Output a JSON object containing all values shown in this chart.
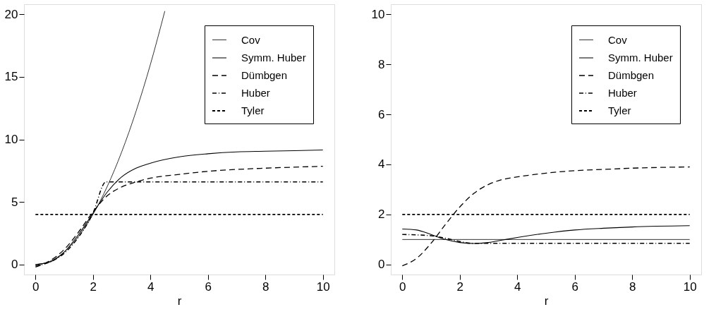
{
  "chart_data": [
    {
      "type": "line",
      "xlabel": "r",
      "xlim": [
        -0.4,
        10.4
      ],
      "ylim": [
        -0.8,
        20.8
      ],
      "xticks": [
        0,
        2,
        4,
        6,
        8,
        10
      ],
      "yticks": [
        0,
        5,
        10,
        15,
        20
      ],
      "grid": false,
      "legend": "top right",
      "marker": "none",
      "series": [
        {
          "name": "Cov",
          "color": "#000000",
          "line_style": "solid",
          "x": [
            0,
            0.5,
            1,
            1.5,
            2,
            2.5,
            3,
            3.5,
            4,
            4.5
          ],
          "values": [
            0,
            0.25,
            1,
            2.25,
            4,
            6.25,
            9,
            12.25,
            16,
            20.25
          ]
        },
        {
          "name": "Symm. Huber",
          "color": "#000000",
          "line_style": "solid",
          "x": [
            0,
            0.5,
            1,
            1.5,
            2,
            2.5,
            3,
            3.5,
            4,
            5,
            6,
            7,
            8,
            10
          ],
          "values": [
            0,
            0.2,
            1.0,
            2.4,
            4.1,
            5.8,
            7.0,
            7.7,
            8.1,
            8.6,
            8.85,
            9.0,
            9.05,
            9.15
          ]
        },
        {
          "name": "Dümbgen",
          "color": "#000000",
          "line_style": "dashed",
          "x": [
            0,
            0.5,
            1,
            1.5,
            2,
            2.5,
            3,
            3.5,
            4,
            5,
            6,
            7,
            8,
            10
          ],
          "values": [
            -0.2,
            0.3,
            1.2,
            2.6,
            4.2,
            5.5,
            6.2,
            6.6,
            6.9,
            7.2,
            7.45,
            7.6,
            7.7,
            7.85
          ]
        },
        {
          "name": "Huber",
          "color": "#000000",
          "line_style": "dashdot",
          "x": [
            0,
            0.5,
            1,
            1.5,
            2,
            2.45,
            10
          ],
          "values": [
            -0.1,
            0.2,
            0.9,
            2.2,
            4.1,
            6.6,
            6.6
          ]
        },
        {
          "name": "Tyler",
          "color": "#000000",
          "line_style": "dashed",
          "x": [
            0,
            10
          ],
          "values": [
            4,
            4
          ]
        }
      ]
    },
    {
      "type": "line",
      "xlabel": "r",
      "xlim": [
        -0.4,
        10.4
      ],
      "ylim": [
        -0.4,
        10.4
      ],
      "xticks": [
        0,
        2,
        4,
        6,
        8,
        10
      ],
      "yticks": [
        0,
        2,
        4,
        6,
        8,
        10
      ],
      "grid": false,
      "legend": "top right",
      "marker": "none",
      "series": [
        {
          "name": "Cov",
          "color": "#000000",
          "line_style": "solid",
          "x": [
            0,
            10
          ],
          "values": [
            1,
            1
          ]
        },
        {
          "name": "Symm. Huber",
          "color": "#000000",
          "line_style": "solid",
          "x": [
            0,
            0.5,
            1,
            1.5,
            2,
            2.5,
            3,
            3.5,
            4,
            5,
            6,
            7,
            8,
            10
          ],
          "values": [
            1.42,
            1.38,
            1.2,
            1.0,
            0.88,
            0.84,
            0.88,
            0.98,
            1.08,
            1.25,
            1.38,
            1.45,
            1.5,
            1.55
          ]
        },
        {
          "name": "Dümbgen",
          "color": "#000000",
          "line_style": "dashed",
          "x": [
            0,
            0.5,
            1,
            1.5,
            2,
            2.5,
            3,
            3.5,
            4,
            5,
            6,
            7,
            8,
            10
          ],
          "values": [
            -0.05,
            0.25,
            0.85,
            1.6,
            2.3,
            2.85,
            3.2,
            3.4,
            3.5,
            3.65,
            3.75,
            3.8,
            3.85,
            3.9
          ]
        },
        {
          "name": "Huber",
          "color": "#000000",
          "line_style": "dashdot",
          "x": [
            0,
            1,
            1.5,
            2,
            2.4,
            10
          ],
          "values": [
            1.2,
            1.15,
            1.05,
            0.92,
            0.85,
            0.85
          ]
        },
        {
          "name": "Tyler",
          "color": "#000000",
          "line_style": "dashed",
          "x": [
            0,
            10
          ],
          "values": [
            2,
            2
          ]
        }
      ]
    }
  ]
}
